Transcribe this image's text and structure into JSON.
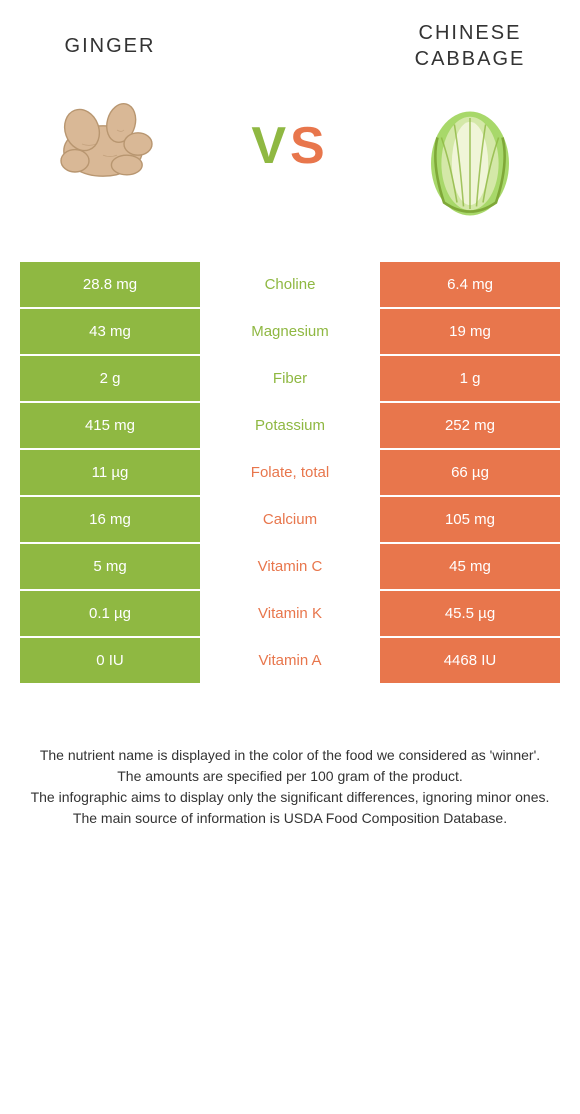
{
  "colors": {
    "left": "#8fb842",
    "right": "#e8764c",
    "white": "#ffffff"
  },
  "header": {
    "left_title": "GINGER",
    "right_title": "CHINESE CABBAGE",
    "vs_v": "V",
    "vs_s": "S"
  },
  "rows": [
    {
      "label": "Choline",
      "left": "28.8 mg",
      "right": "6.4 mg",
      "winner": "left"
    },
    {
      "label": "Magnesium",
      "left": "43 mg",
      "right": "19 mg",
      "winner": "left"
    },
    {
      "label": "Fiber",
      "left": "2 g",
      "right": "1 g",
      "winner": "left"
    },
    {
      "label": "Potassium",
      "left": "415 mg",
      "right": "252 mg",
      "winner": "left"
    },
    {
      "label": "Folate, total",
      "left": "11 µg",
      "right": "66 µg",
      "winner": "right"
    },
    {
      "label": "Calcium",
      "left": "16 mg",
      "right": "105 mg",
      "winner": "right"
    },
    {
      "label": "Vitamin C",
      "left": "5 mg",
      "right": "45 mg",
      "winner": "right"
    },
    {
      "label": "Vitamin K",
      "left": "0.1 µg",
      "right": "45.5 µg",
      "winner": "right"
    },
    {
      "label": "Vitamin A",
      "left": "0 IU",
      "right": "4468 IU",
      "winner": "right"
    }
  ],
  "footer": {
    "line1": "The nutrient name is displayed in the color of the food we considered as 'winner'.",
    "line2": "The amounts are specified per 100 gram of the product.",
    "line3": "The infographic aims to display only the significant differences, ignoring minor ones.",
    "line4": "The main source of information is USDA Food Composition Database."
  }
}
